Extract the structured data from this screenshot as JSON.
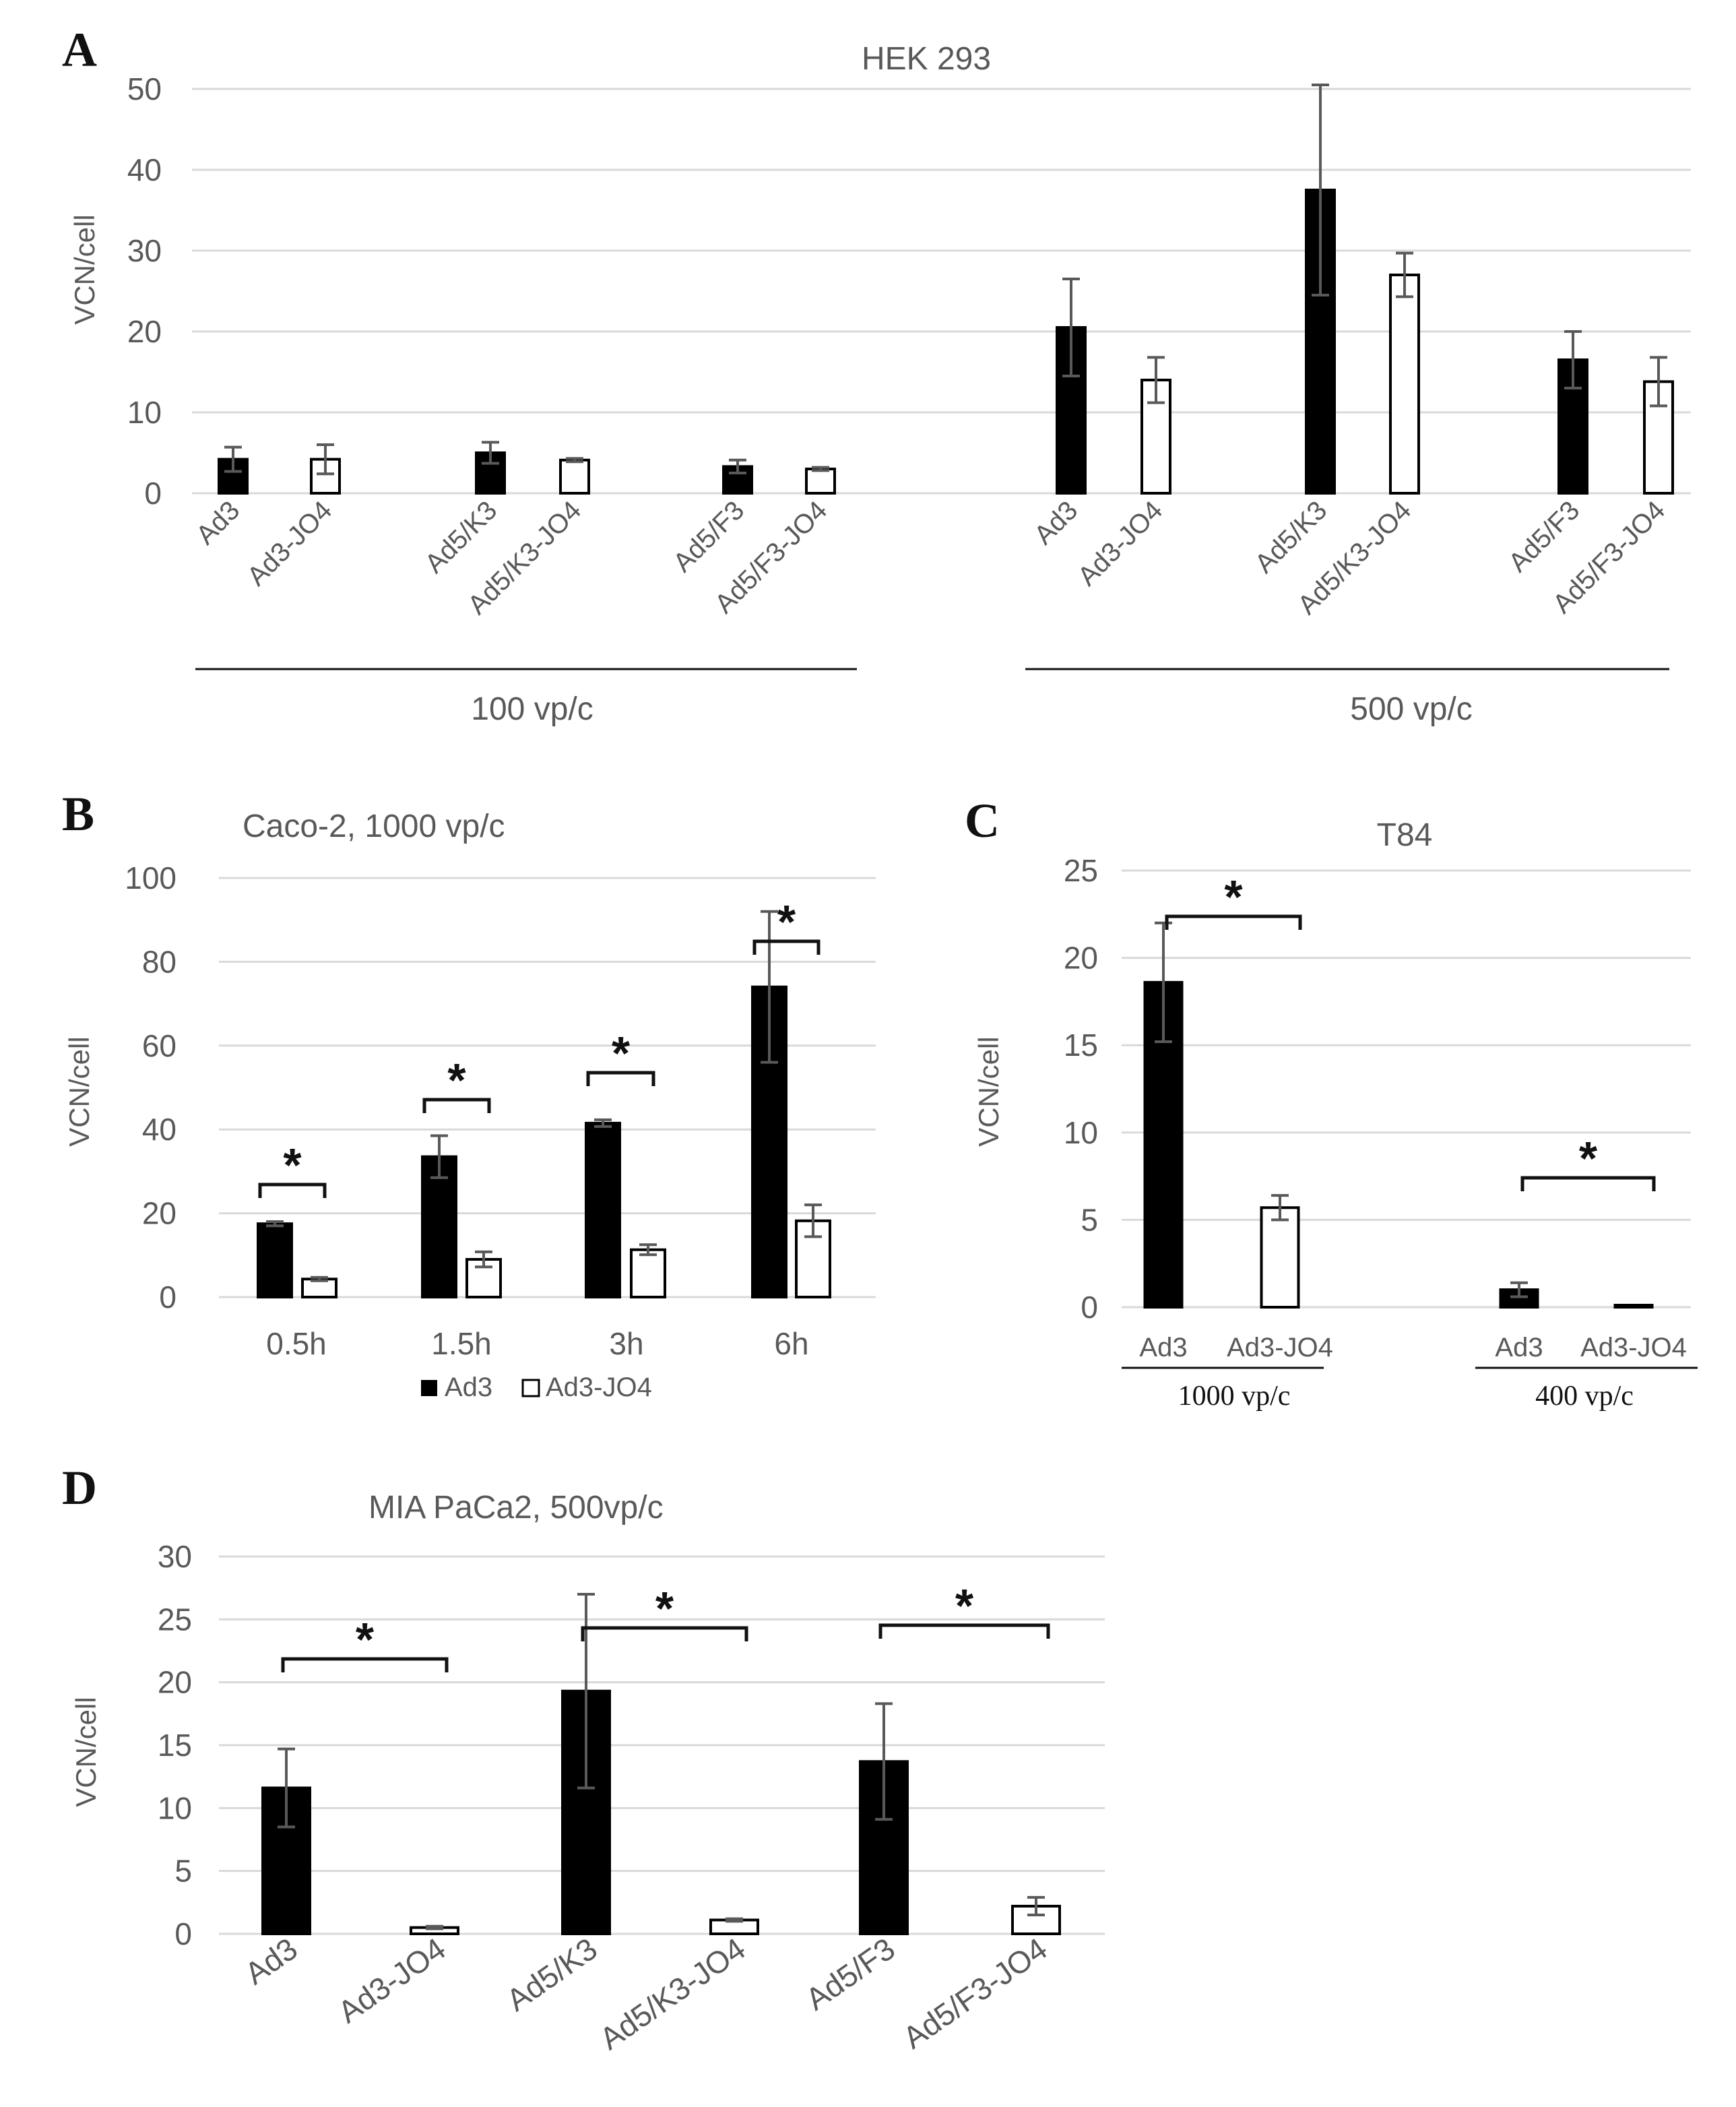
{
  "chart_data": [
    {
      "panel": "A",
      "type": "bar",
      "title": "HEK 293",
      "ylabel": "VCN/cell",
      "ylim": [
        0,
        50
      ],
      "yticks": [
        "0",
        "10",
        "20",
        "30",
        "40",
        "50"
      ],
      "groups": [
        {
          "label": "100 vp/c",
          "bars": [
            {
              "label": "Ad3",
              "value": 4.2,
              "error": 1.5,
              "fill": "black"
            },
            {
              "label": "Ad3-JO4",
              "value": 4.2,
              "error": 1.8,
              "fill": "white"
            },
            {
              "label": "Ad5/K3",
              "value": 5.0,
              "error": 1.3,
              "fill": "black"
            },
            {
              "label": "Ad5/K3-JO4",
              "value": 4.1,
              "error": 0.2,
              "fill": "white"
            },
            {
              "label": "Ad5/F3",
              "value": 3.3,
              "error": 0.8,
              "fill": "black"
            },
            {
              "label": "Ad5/F3-JO4",
              "value": 3.0,
              "error": 0.2,
              "fill": "white"
            }
          ]
        },
        {
          "label": "500 vp/c",
          "bars": [
            {
              "label": "Ad3",
              "value": 20.5,
              "error": 6.0,
              "fill": "black"
            },
            {
              "label": "Ad3-JO4",
              "value": 14.0,
              "error": 2.8,
              "fill": "white"
            },
            {
              "label": "Ad5/K3",
              "value": 37.5,
              "error": 13.0,
              "fill": "black"
            },
            {
              "label": "Ad5/K3-JO4",
              "value": 27.0,
              "error": 2.7,
              "fill": "white"
            },
            {
              "label": "Ad5/F3",
              "value": 16.5,
              "error": 3.5,
              "fill": "black"
            },
            {
              "label": "Ad5/F3-JO4",
              "value": 13.8,
              "error": 3.0,
              "fill": "white"
            }
          ]
        }
      ]
    },
    {
      "panel": "B",
      "type": "bar",
      "title": "Caco-2, 1000 vp/c",
      "ylabel": "VCN/cell",
      "ylim": [
        0,
        100
      ],
      "yticks": [
        "0",
        "20",
        "40",
        "60",
        "80",
        "100"
      ],
      "categories": [
        "0.5h",
        "1.5h",
        "3h",
        "6h"
      ],
      "series": [
        {
          "name": "Ad3",
          "fill": "black",
          "values": [
            17.5,
            33.5,
            41.5,
            74
          ],
          "errors": [
            0.5,
            5,
            0.8,
            18
          ]
        },
        {
          "name": "Ad3-JO4",
          "fill": "white",
          "values": [
            4.3,
            9,
            11.3,
            18.2
          ],
          "errors": [
            0.4,
            1.8,
            1.2,
            3.8
          ]
        }
      ],
      "significance": [
        "*",
        "*",
        "*",
        "*"
      ],
      "legend": [
        "Ad3",
        "Ad3-JO4"
      ],
      "legend_position": "bottom"
    },
    {
      "panel": "C",
      "type": "bar",
      "title": "T84",
      "ylabel": "VCN/cell",
      "ylim": [
        0,
        25
      ],
      "yticks": [
        "0",
        "5",
        "10",
        "15",
        "20",
        "25"
      ],
      "groups": [
        {
          "label": "1000 vp/c",
          "bars": [
            {
              "label": "Ad3",
              "value": 18.6,
              "error": 3.4,
              "fill": "black"
            },
            {
              "label": "Ad3-JO4",
              "value": 5.7,
              "error": 0.7,
              "fill": "white"
            }
          ]
        },
        {
          "label": "400 vp/c",
          "bars": [
            {
              "label": "Ad3",
              "value": 1.0,
              "error": 0.4,
              "fill": "black"
            },
            {
              "label": "Ad3-JO4",
              "value": 0.1,
              "error": 0.0,
              "fill": "white"
            }
          ]
        }
      ],
      "significance": [
        "*",
        "*"
      ]
    },
    {
      "panel": "D",
      "type": "bar",
      "title": "MIA PaCa2, 500vp/c",
      "ylabel": "VCN/cell",
      "ylim": [
        0,
        30
      ],
      "yticks": [
        "0",
        "5",
        "10",
        "15",
        "20",
        "25",
        "30"
      ],
      "categories": [
        "Ad3",
        "Ad3-JO4",
        "Ad5/K3",
        "Ad5/K3-JO4",
        "Ad5/F3",
        "Ad5/F3-JO4"
      ],
      "values": [
        11.6,
        0.5,
        19.3,
        1.1,
        13.7,
        2.2
      ],
      "errors": [
        3.1,
        0.1,
        7.7,
        0.1,
        4.6,
        0.7
      ],
      "fills": [
        "black",
        "white",
        "black",
        "white",
        "black",
        "white"
      ],
      "significance": [
        "*",
        "*",
        "*"
      ]
    }
  ]
}
